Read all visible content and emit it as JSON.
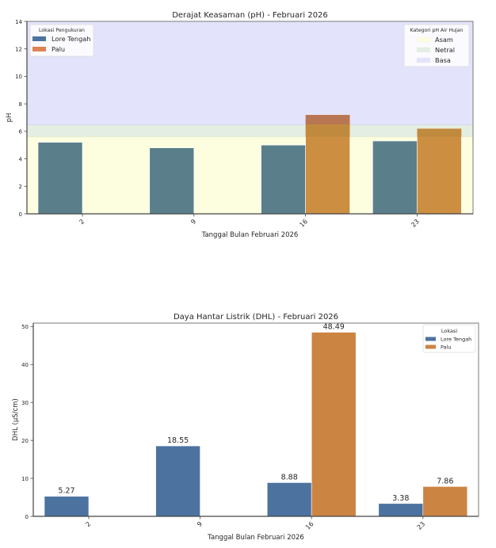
{
  "chart_data": [
    {
      "type": "bar",
      "title": "Derajat Keasaman (pH) - Februari 2026",
      "xlabel": "Tanggal Bulan Februari 2026",
      "ylabel": "pH",
      "ylim": [
        0,
        14
      ],
      "yticks": [
        "0",
        "2",
        "4",
        "6",
        "8",
        "10",
        "12",
        "14"
      ],
      "categories": [
        "2",
        "9",
        "16",
        "23"
      ],
      "series": [
        {
          "name": "Lore Tengah",
          "color": "#4c72a0",
          "values": [
            5.2,
            4.8,
            5.0,
            5.3
          ]
        },
        {
          "name": "Palu",
          "color": "#dd8452",
          "values": [
            null,
            null,
            7.2,
            6.2
          ]
        }
      ],
      "legend": {
        "title": "Lokasi Pengukuran",
        "placement": "top-left"
      },
      "bands": {
        "legend_title": "Kategori pH Air Hujan",
        "placement": "top-right",
        "items": [
          {
            "name": "Asam",
            "range": [
              0,
              5.6
            ],
            "color": "#fdfde0"
          },
          {
            "name": "Netral",
            "range": [
              5.6,
              6.5
            ],
            "color": "#e4eee2"
          },
          {
            "name": "Basa",
            "range": [
              6.5,
              14
            ],
            "color": "#e3e3fb"
          }
        ]
      },
      "grid": false
    },
    {
      "type": "bar",
      "title": "Daya Hantar Listrik (DHL) - Februari 2026",
      "xlabel": "Tanggal Bulan Februari 2026",
      "ylabel": "DHL (µS/cm)",
      "ylim": [
        0,
        50.9
      ],
      "yticks": [
        "0",
        "10",
        "20",
        "30",
        "40",
        "50"
      ],
      "categories": [
        "2",
        "9",
        "16",
        "23"
      ],
      "series": [
        {
          "name": "Lore Tengah",
          "color": "#4c72a0",
          "values": [
            5.27,
            18.55,
            8.88,
            3.38
          ],
          "labels": [
            "5.27",
            "18.55",
            "8.88",
            "3.38"
          ]
        },
        {
          "name": "Palu",
          "color": "#cc8443",
          "values": [
            null,
            null,
            48.49,
            7.86
          ],
          "labels": [
            null,
            null,
            "48.49",
            "7.86"
          ]
        }
      ],
      "legend": {
        "title": "Lokasi",
        "placement": "top-right"
      },
      "grid": false
    }
  ]
}
